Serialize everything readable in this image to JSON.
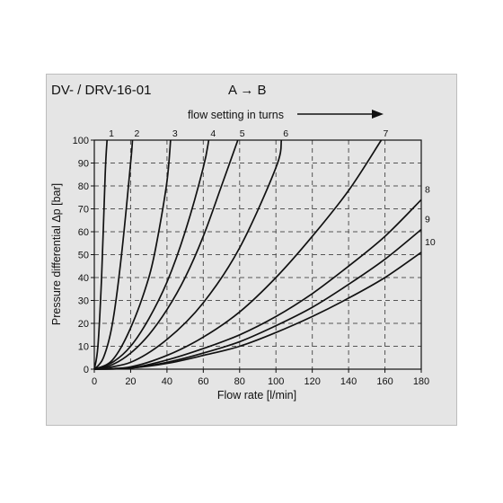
{
  "header": {
    "title": "DV- / DRV-16-01",
    "direction": "A → B"
  },
  "chart_data": {
    "type": "line",
    "title": "DV- / DRV-16-01",
    "subtitle": "A → B",
    "top_annotation": "flow setting in turns",
    "xlabel": "Flow rate [l/min]",
    "ylabel": "Pressure differential Δp [bar]",
    "xlim": [
      0,
      180
    ],
    "ylim": [
      0,
      100
    ],
    "x_ticks": [
      "0",
      "20",
      "40",
      "60",
      "80",
      "100",
      "120",
      "140",
      "160",
      "180"
    ],
    "y_ticks": [
      "0",
      "10",
      "20",
      "30",
      "40",
      "50",
      "60",
      "70",
      "80",
      "90",
      "100"
    ],
    "grid": true,
    "line_color": "#111111",
    "grid_color": "#555555",
    "series": [
      {
        "name": "1",
        "x": [
          0,
          2,
          4,
          6,
          7
        ],
        "y": [
          0,
          10,
          40,
          85,
          100
        ]
      },
      {
        "name": "2",
        "x": [
          0,
          5,
          10,
          15,
          20,
          21
        ],
        "y": [
          0,
          5,
          20,
          50,
          90,
          100
        ]
      },
      {
        "name": "3",
        "x": [
          0,
          10,
          20,
          30,
          35,
          40,
          42
        ],
        "y": [
          0,
          4,
          18,
          40,
          58,
          82,
          100
        ]
      },
      {
        "name": "4",
        "x": [
          0,
          10,
          20,
          30,
          40,
          50,
          60,
          63
        ],
        "y": [
          0,
          3,
          10,
          22,
          38,
          60,
          88,
          100
        ]
      },
      {
        "name": "5",
        "x": [
          0,
          10,
          20,
          30,
          40,
          50,
          60,
          70,
          79
        ],
        "y": [
          0,
          2,
          7,
          15,
          26,
          40,
          58,
          80,
          100
        ]
      },
      {
        "name": "6",
        "x": [
          0,
          20,
          40,
          60,
          80,
          100,
          103
        ],
        "y": [
          0,
          3,
          13,
          29,
          53,
          88,
          100
        ]
      },
      {
        "name": "7",
        "x": [
          0,
          20,
          40,
          60,
          80,
          100,
          120,
          140,
          158
        ],
        "y": [
          0,
          1,
          6,
          14,
          25,
          40,
          58,
          78,
          100
        ]
      },
      {
        "name": "8",
        "x": [
          0,
          20,
          40,
          60,
          80,
          100,
          120,
          140,
          160,
          180
        ],
        "y": [
          0,
          0.5,
          4,
          9,
          15,
          23,
          33,
          45,
          58,
          74
        ]
      },
      {
        "name": "9",
        "x": [
          0,
          20,
          40,
          60,
          80,
          100,
          120,
          140,
          160,
          180
        ],
        "y": [
          0,
          0.5,
          3,
          7,
          12,
          19,
          27,
          37,
          48,
          61
        ]
      },
      {
        "name": "10",
        "x": [
          0,
          20,
          40,
          60,
          80,
          100,
          120,
          140,
          160,
          180
        ],
        "y": [
          0,
          0.5,
          2.5,
          6,
          10,
          16,
          23,
          31,
          40,
          51
        ]
      }
    ]
  }
}
